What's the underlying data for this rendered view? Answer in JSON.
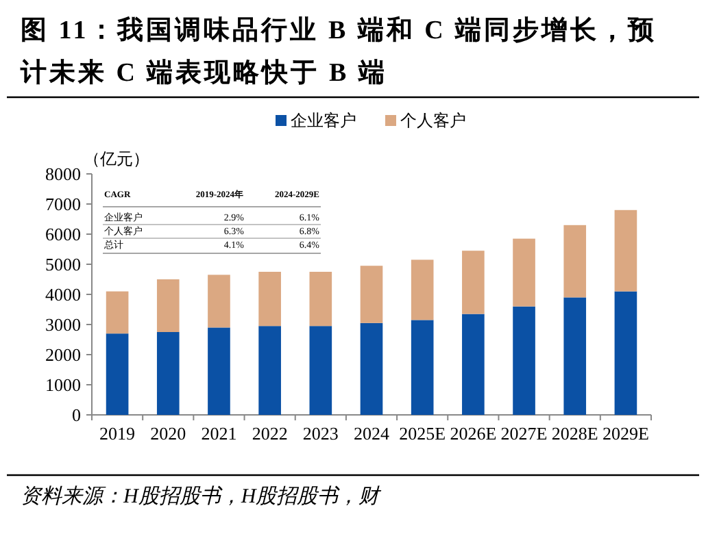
{
  "chart_data": {
    "type": "bar",
    "title": "图 11：我国调味品行业 B 端和 C 端同步增长，预计未来 C 端表现略快于 B 端",
    "ylabel": "（亿元）",
    "categories": [
      "2019",
      "2020",
      "2021",
      "2022",
      "2023",
      "2024",
      "2025E",
      "2026E",
      "2027E",
      "2028E",
      "2029E"
    ],
    "stacked": true,
    "legend": "top",
    "series": [
      {
        "name": "企业客户",
        "color": "#0b51a5",
        "values": [
          2700,
          2750,
          2900,
          2950,
          2950,
          3050,
          3150,
          3350,
          3600,
          3900,
          4100
        ]
      },
      {
        "name": "个人客户",
        "color": "#dba882",
        "values": [
          1400,
          1750,
          1750,
          1800,
          1800,
          1900,
          2000,
          2100,
          2250,
          2400,
          2700
        ]
      }
    ],
    "ylim": [
      0,
      8000
    ],
    "yticks": [
      0,
      1000,
      2000,
      3000,
      4000,
      5000,
      6000,
      7000,
      8000
    ],
    "annotations": [
      "CAGR",
      "2019-2024年",
      "2024-2029E",
      "企业客户",
      "2.9%",
      "6.1%",
      "个人客户",
      "6.3%",
      "6.8%",
      "总计",
      "4.1%",
      "6.4%",
      "资料来源：H股招股书，H股招股书，财"
    ]
  }
}
